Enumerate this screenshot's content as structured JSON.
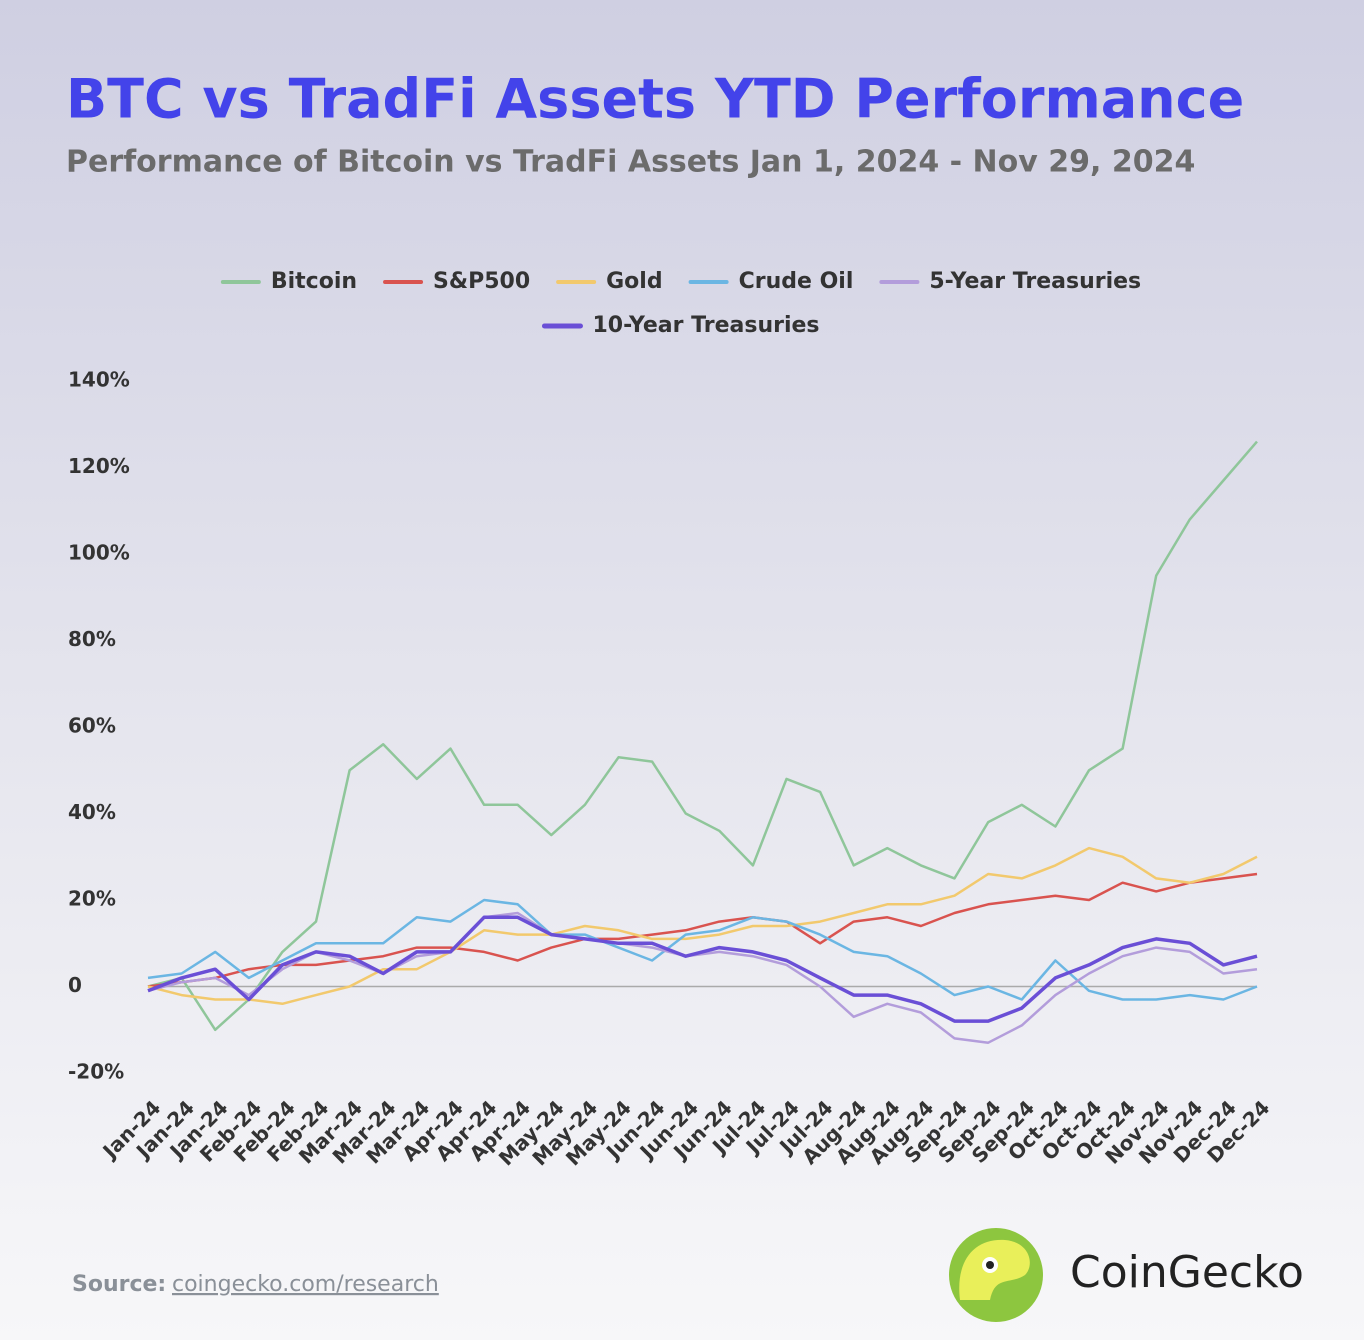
{
  "chart_data": {
    "type": "line",
    "title": "BTC vs TradFi Assets YTD Performance",
    "subtitle": "Performance of Bitcoin vs TradFi Assets Jan 1, 2024 - Nov 29, 2024",
    "categories": [
      "Jan-24",
      "Jan-24",
      "Jan-24",
      "Feb-24",
      "Feb-24",
      "Feb-24",
      "Mar-24",
      "Mar-24",
      "Mar-24",
      "Apr-24",
      "Apr-24",
      "Apr-24",
      "May-24",
      "May-24",
      "May-24",
      "Jun-24",
      "Jun-24",
      "Jun-24",
      "Jul-24",
      "Jul-24",
      "Jul-24",
      "Aug-24",
      "Aug-24",
      "Aug-24",
      "Sep-24",
      "Sep-24",
      "Sep-24",
      "Oct-24",
      "Oct-24",
      "Oct-24",
      "Nov-24",
      "Nov-24",
      "Dec-24",
      "Dec-24"
    ],
    "series": [
      {
        "name": "Bitcoin",
        "color": "#8fc69a",
        "values": [
          0,
          2,
          -10,
          -3,
          8,
          15,
          50,
          56,
          48,
          55,
          42,
          42,
          35,
          42,
          53,
          52,
          40,
          36,
          28,
          48,
          45,
          28,
          32,
          28,
          25,
          38,
          42,
          37,
          50,
          55,
          95,
          108,
          117,
          126
        ]
      },
      {
        "name": "S&P500",
        "color": "#d9534f",
        "values": [
          0,
          1,
          2,
          4,
          5,
          5,
          6,
          7,
          9,
          9,
          8,
          6,
          9,
          11,
          11,
          12,
          13,
          15,
          16,
          15,
          10,
          15,
          16,
          14,
          17,
          19,
          20,
          21,
          20,
          24,
          22,
          24,
          25,
          26
        ]
      },
      {
        "name": "Gold",
        "color": "#f2c96d",
        "values": [
          0,
          -2,
          -3,
          -3,
          -4,
          -2,
          0,
          4,
          4,
          8,
          13,
          12,
          12,
          14,
          13,
          11,
          11,
          12,
          14,
          14,
          15,
          17,
          19,
          19,
          21,
          26,
          25,
          28,
          32,
          30,
          25,
          24,
          26,
          30
        ]
      },
      {
        "name": "Crude Oil",
        "color": "#6bb6e3",
        "values": [
          2,
          3,
          8,
          2,
          6,
          10,
          10,
          10,
          16,
          15,
          20,
          19,
          12,
          12,
          9,
          6,
          12,
          13,
          16,
          15,
          12,
          8,
          7,
          3,
          -2,
          0,
          -3,
          6,
          -1,
          -3,
          -3,
          -2,
          -3,
          0
        ]
      },
      {
        "name": "5-Year Treasuries",
        "color": "#b39ddb",
        "values": [
          -1,
          1,
          2,
          -2,
          4,
          8,
          6,
          3,
          7,
          8,
          16,
          17,
          12,
          11,
          10,
          9,
          7,
          8,
          7,
          5,
          0,
          -7,
          -4,
          -6,
          -12,
          -13,
          -9,
          -2,
          3,
          7,
          9,
          8,
          3,
          4
        ]
      },
      {
        "name": "10-Year Treasuries",
        "color": "#6a4fd6",
        "values": [
          -1,
          2,
          4,
          -3,
          5,
          8,
          7,
          3,
          8,
          8,
          16,
          16,
          12,
          11,
          10,
          10,
          7,
          9,
          8,
          6,
          2,
          -2,
          -2,
          -4,
          -8,
          -8,
          -5,
          2,
          5,
          9,
          11,
          10,
          5,
          7
        ]
      }
    ],
    "ylim": [
      -20,
      140
    ],
    "yticks": [
      {
        "value": -20,
        "label": "-20%"
      },
      {
        "value": 20,
        "label": "20%"
      },
      0,
      {
        "value": 40,
        "label": "40%"
      },
      {
        "value": 60,
        "label": "60%"
      },
      {
        "value": 80,
        "label": "80%"
      },
      {
        "value": 100,
        "label": "100%"
      },
      {
        "value": 120,
        "label": "120%"
      },
      {
        "value": 140,
        "label": "140%"
      }
    ],
    "grid": false,
    "zero_line": true,
    "legend": "top"
  },
  "footer": {
    "source_label": "Source:",
    "source_url": "coingecko.com/research",
    "brand": "CoinGecko"
  }
}
